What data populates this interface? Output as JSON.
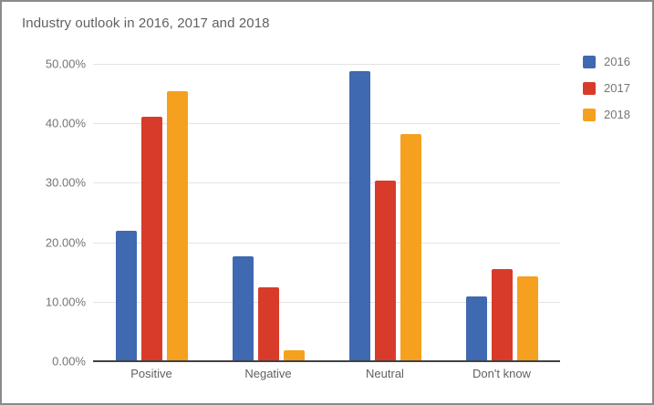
{
  "card": {
    "title": "Industry outlook in 2016, 2017 and 2018"
  },
  "chart_data": {
    "type": "bar",
    "title": "Industry outlook in 2016, 2017 and 2018",
    "categories": [
      "Positive",
      "Negative",
      "Neutral",
      "Don't know"
    ],
    "series": [
      {
        "name": "2016",
        "color": "#3F69B1",
        "values": [
          21.9,
          17.7,
          48.8,
          10.9
        ]
      },
      {
        "name": "2017",
        "color": "#D93B2B",
        "values": [
          41.1,
          12.5,
          30.4,
          15.5
        ]
      },
      {
        "name": "2018",
        "color": "#F6A01F",
        "values": [
          45.4,
          1.9,
          38.2,
          14.2
        ]
      }
    ],
    "xlabel": "",
    "ylabel": "",
    "ylim": [
      0,
      50
    ],
    "ytick_step": 10,
    "yticks": [
      "50.00%",
      "40.00%",
      "30.00%",
      "20.00%",
      "10.00%",
      "0.00%"
    ],
    "grid": true,
    "legend_position": "top-right"
  },
  "style": {
    "gridline_color": "#e3e3e3",
    "axis_color": "#424242",
    "title_color": "#616161",
    "tick_label_color": "#757575",
    "category_label_color": "#616161",
    "card_border_color": "#8a8a8a"
  }
}
